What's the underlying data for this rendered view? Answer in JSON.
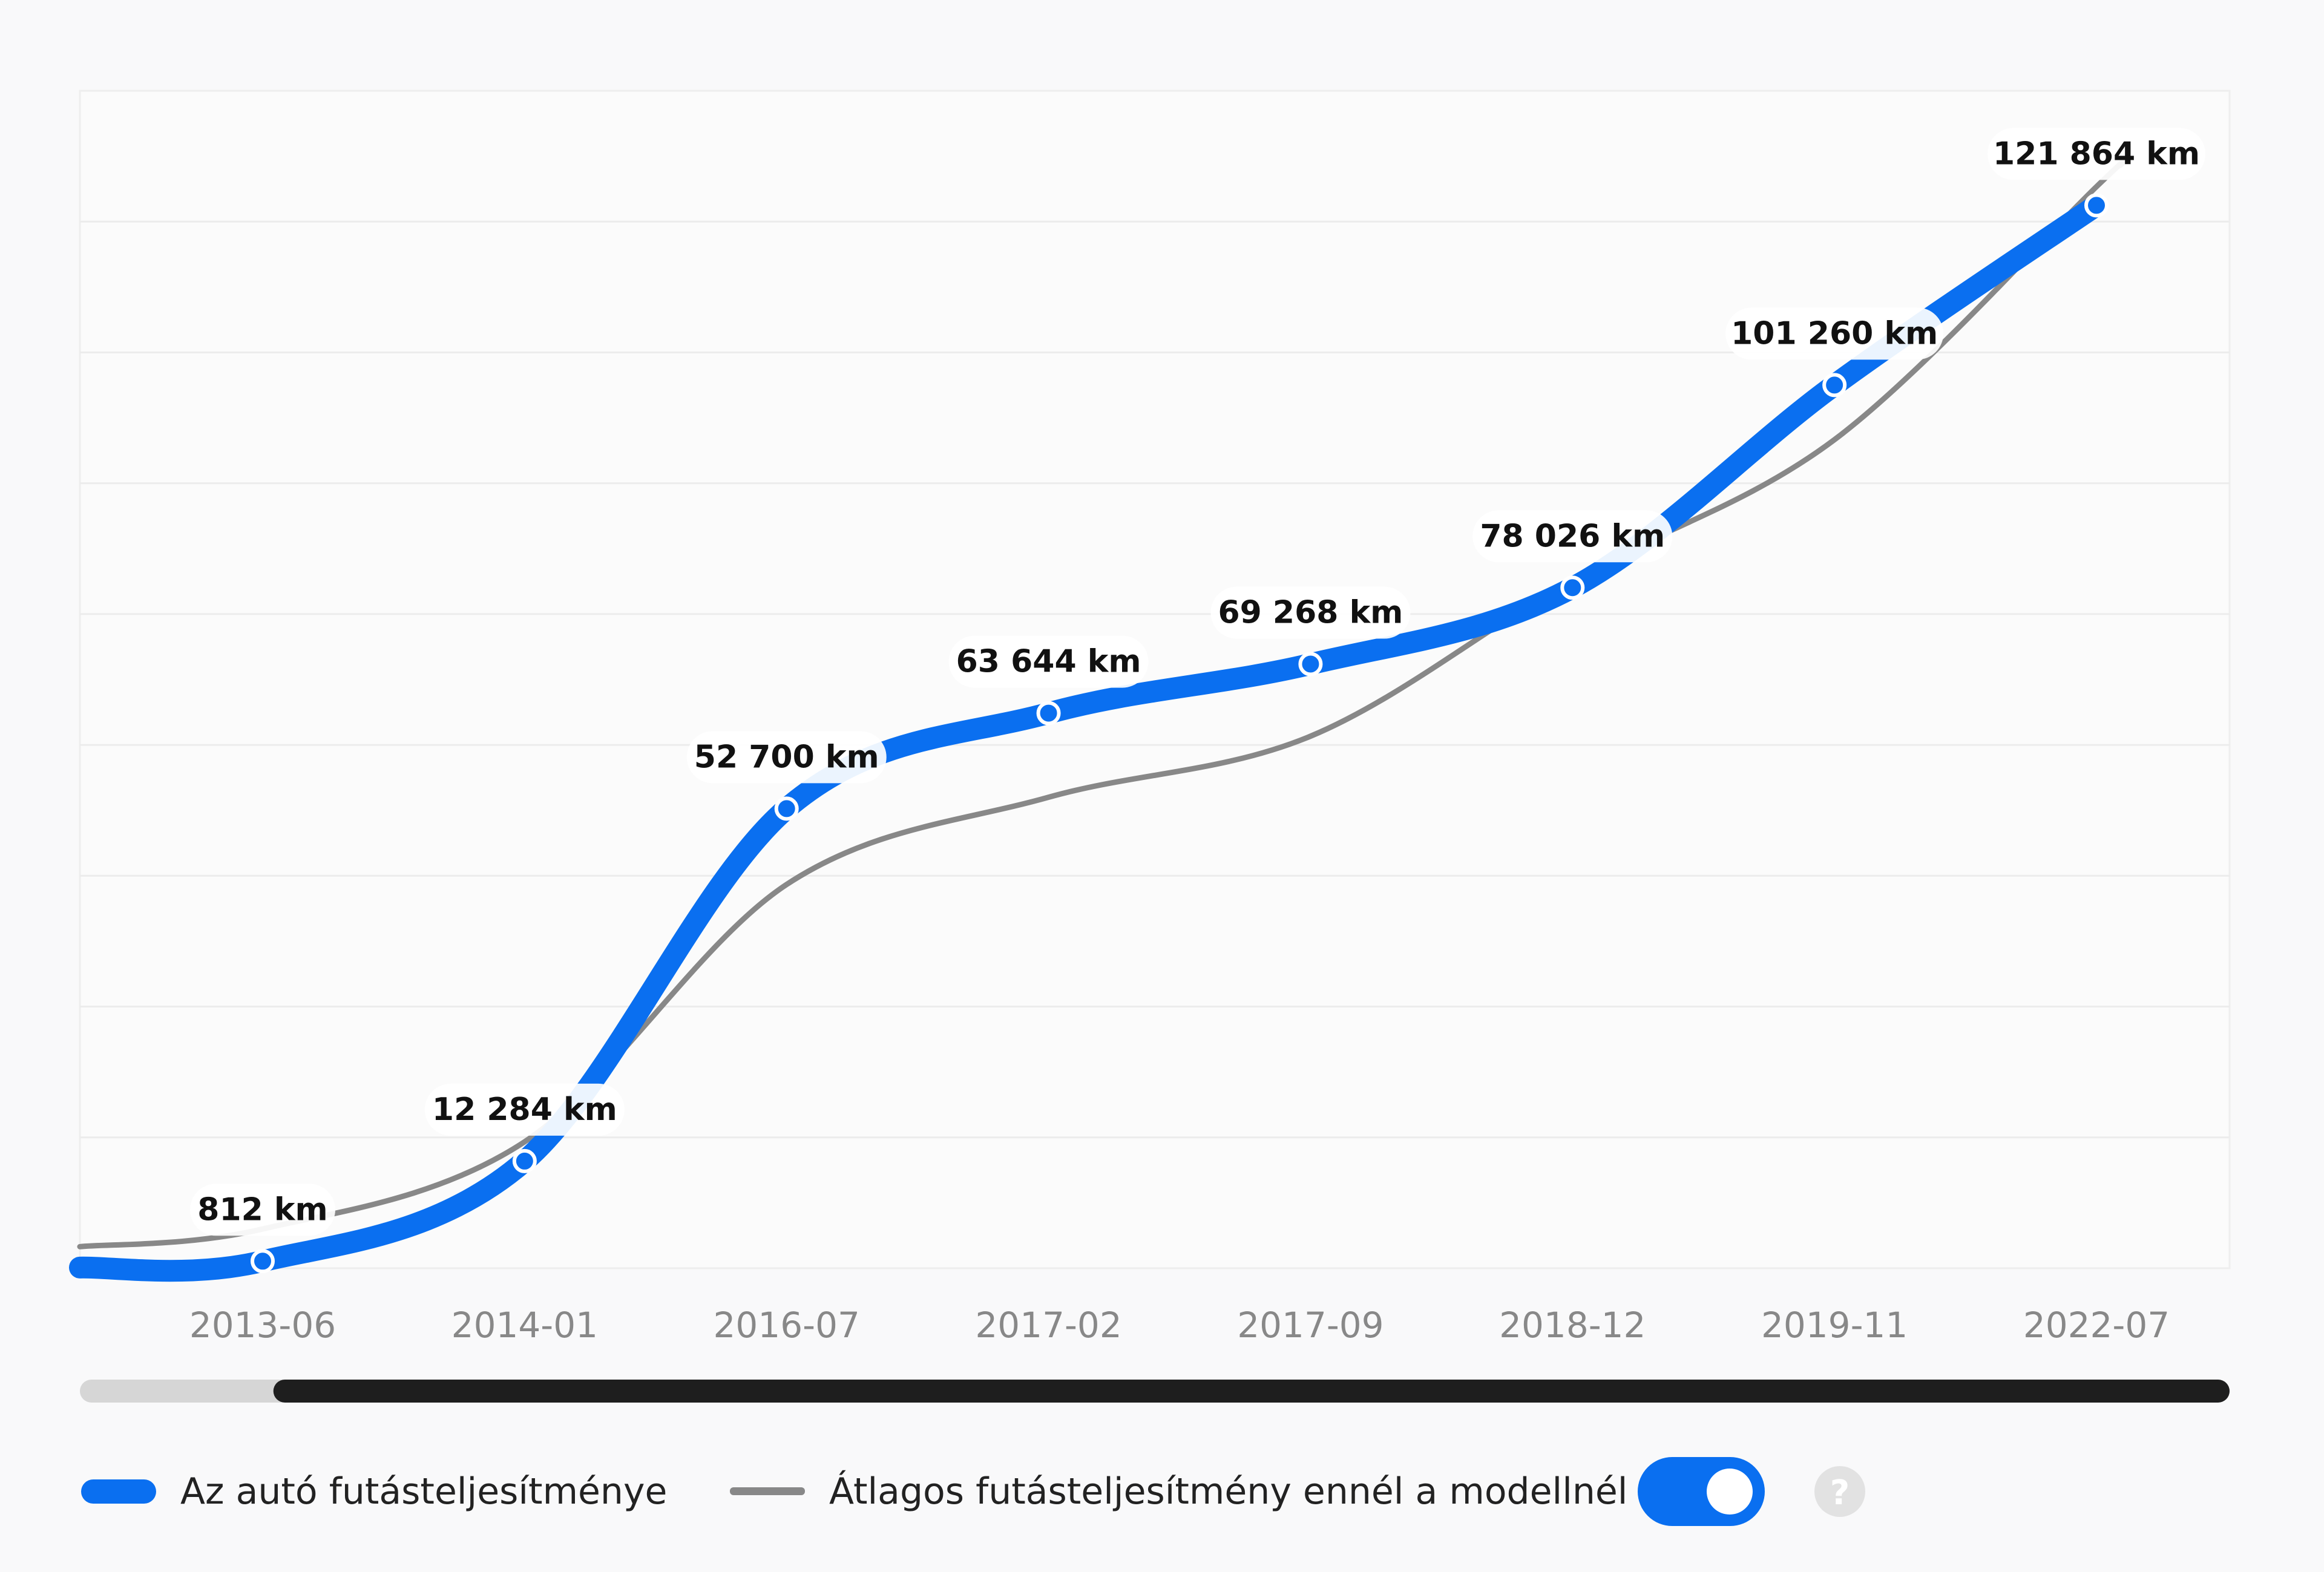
{
  "chart_data": {
    "type": "line",
    "categories": [
      "2013-06",
      "2014-01",
      "2016-07",
      "2017-02",
      "2017-09",
      "2018-12",
      "2019-11",
      "2022-07"
    ],
    "series": [
      {
        "name": "Az autó futásteljesítménye",
        "values": [
          812,
          12284,
          52700,
          63644,
          69268,
          78026,
          101260,
          121864
        ],
        "color": "#0a6ff0"
      },
      {
        "name": "Átlagos futásteljesítmény ennél a modellnél",
        "values": [
          4500,
          14500,
          44000,
          54000,
          61000,
          79000,
          95000,
          124000
        ],
        "color": "#888888"
      }
    ],
    "data_labels": [
      "812 km",
      "12 284 km",
      "52 700 km",
      "63 644 km",
      "69 268 km",
      "78 026 km",
      "101 260 km",
      "121 864 km"
    ],
    "title": "",
    "xlabel": "",
    "ylabel": "",
    "ylim": [
      0,
      135000
    ],
    "grid": true,
    "legend_position": "bottom"
  },
  "controls": {
    "toggle_on": true,
    "toggle_color": "#0a6ff0",
    "help_icon": "question-circle-icon",
    "help_symbol": "?"
  },
  "scrollbar": {
    "visible_start_fraction": 0.09,
    "visible_end_fraction": 1.0
  }
}
